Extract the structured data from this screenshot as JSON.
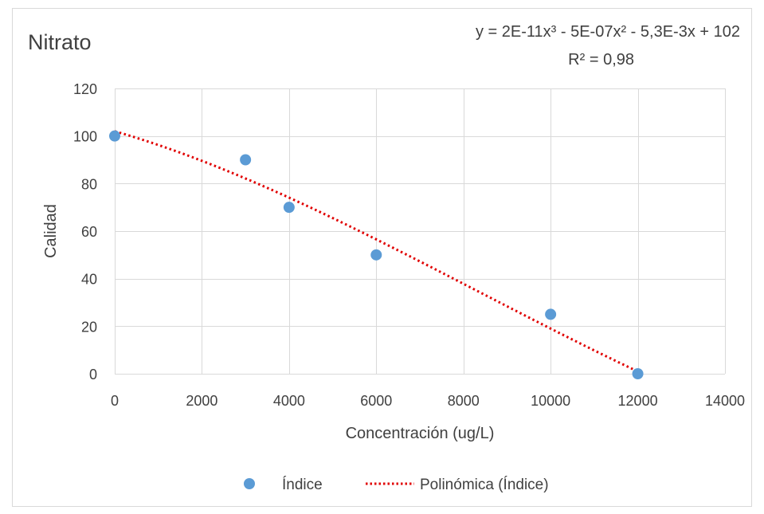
{
  "chart_data": {
    "type": "scatter",
    "title": "Nitrato",
    "xlabel": "Concentración (ug/L)",
    "ylabel": "Calidad",
    "xlim": [
      0,
      14000
    ],
    "ylim": [
      0,
      120
    ],
    "x_ticks": [
      0,
      2000,
      4000,
      6000,
      8000,
      10000,
      12000,
      14000
    ],
    "y_ticks": [
      0,
      20,
      40,
      60,
      80,
      100,
      120
    ],
    "x_tick_labels": [
      "0",
      "2000",
      "4000",
      "6000",
      "8000",
      "10000",
      "12000",
      "14000"
    ],
    "y_tick_labels": [
      "0",
      "20",
      "40",
      "60",
      "80",
      "100",
      "120"
    ],
    "grid": true,
    "legend_position": "bottom",
    "series": [
      {
        "name": "Índice",
        "kind": "scatter",
        "color": "#5b9bd5",
        "x": [
          0,
          3000,
          4000,
          6000,
          10000,
          12000
        ],
        "y": [
          100,
          90,
          70,
          50,
          25,
          0
        ]
      }
    ],
    "trendline": {
      "name": "Polinómica (Índice)",
      "kind": "polynomial",
      "order": 3,
      "color": "#e00000",
      "style": "dotted",
      "coefficients": [
        2e-11,
        -5e-07,
        -0.0053,
        102
      ],
      "equation_text": "y = 2E-11x³ - 5E-07x² - 5,3E-3x + 102",
      "r2_text": "R² = 0,98"
    }
  }
}
